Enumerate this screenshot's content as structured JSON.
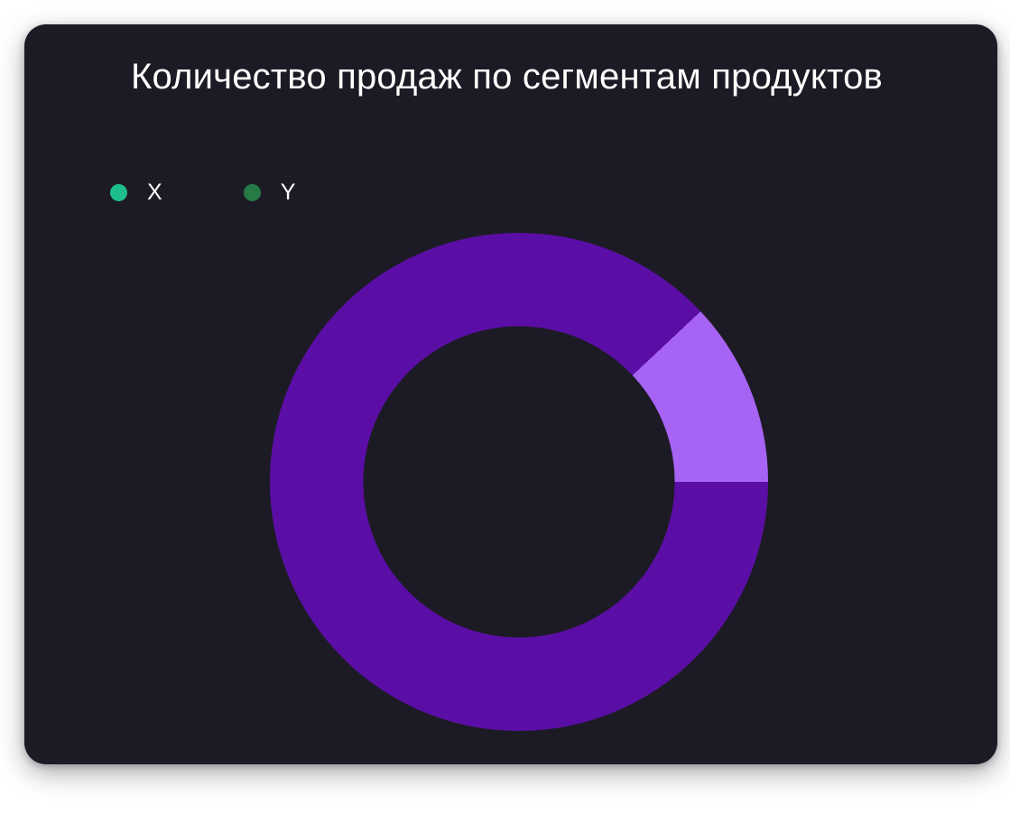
{
  "page": {
    "background": "#ffffff"
  },
  "card": {
    "background": "#1C1B25"
  },
  "chart_data": {
    "type": "pie",
    "variant": "donut",
    "title": "Количество продаж по сегментам продуктов",
    "labels": [
      "X",
      "Y"
    ],
    "values": [
      88,
      12
    ],
    "unit": "percent_of_total",
    "slice_colors": [
      "#5B0EA5",
      "#A763F4"
    ],
    "legend_colors": [
      "#1EBE8C",
      "#257A46"
    ],
    "legend_position": "top-left",
    "start_angle_deg": 90,
    "inner_radius_ratio": 0.625,
    "data_labels_visible": false,
    "axes_visible": false
  },
  "legend": {
    "items": [
      {
        "label": "X"
      },
      {
        "label": "Y"
      }
    ]
  }
}
